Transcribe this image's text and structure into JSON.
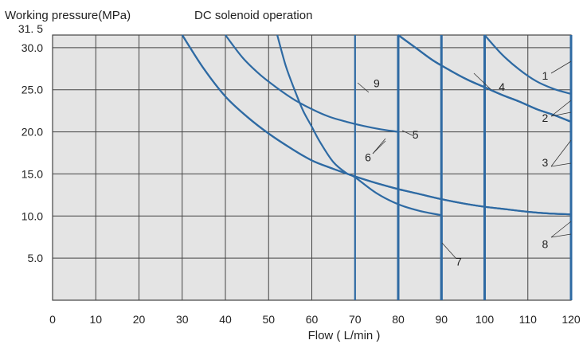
{
  "chart_data": {
    "type": "line",
    "title": "Working pressure(MPa)",
    "subtitle": "DC solenoid operation",
    "xlabel": "Flow ( L/min )",
    "ylabel": "Working pressure(MPa)",
    "xlim": [
      0,
      120
    ],
    "ylim": [
      0,
      31.5
    ],
    "x_ticks": [
      "0",
      "10",
      "20",
      "30",
      "40",
      "50",
      "60",
      "70",
      "80",
      "90",
      "100",
      "110",
      "120"
    ],
    "y_ticks": [
      {
        "value": 5,
        "label": "5.0"
      },
      {
        "value": 10,
        "label": "10.0"
      },
      {
        "value": 15,
        "label": "15.0"
      },
      {
        "value": 20,
        "label": "20.0"
      },
      {
        "value": 25,
        "label": "25.0"
      },
      {
        "value": 30,
        "label": "30.0"
      },
      {
        "value": 31.5,
        "label": "31. 5"
      }
    ],
    "grid": true,
    "accent_color": "#2e6aa3",
    "background_color": "#e4e4e4",
    "series": [
      {
        "label": "1",
        "x": [
          100,
          104,
          108,
          112,
          116,
          120
        ],
        "y": [
          31.5,
          29.2,
          27.4,
          26.0,
          25.1,
          24.5
        ]
      },
      {
        "label": "2",
        "x": [
          80,
          84,
          88,
          92,
          96,
          100,
          104,
          108,
          112,
          116,
          120
        ],
        "y": [
          31.5,
          30.0,
          28.5,
          27.3,
          26.2,
          25.3,
          24.4,
          23.6,
          22.7,
          22.0,
          21.2
        ]
      },
      {
        "label": "3",
        "x": [
          80,
          84,
          88,
          92,
          96,
          100,
          104,
          108,
          112,
          116,
          120
        ],
        "y": [
          31.5,
          30.0,
          28.5,
          27.3,
          26.2,
          25.3,
          24.4,
          23.6,
          22.7,
          22.0,
          21.2
        ]
      },
      {
        "label": "4",
        "x": [
          80,
          84,
          88,
          92,
          96,
          100,
          104,
          108,
          112,
          116,
          120
        ],
        "y": [
          31.5,
          30.0,
          28.5,
          27.3,
          26.2,
          25.3,
          24.4,
          23.6,
          22.7,
          22.0,
          21.2
        ]
      },
      {
        "label": "5",
        "x": [
          40,
          44,
          48,
          52,
          56,
          60,
          64,
          68,
          72,
          76,
          80
        ],
        "y": [
          31.5,
          28.8,
          26.8,
          25.2,
          23.8,
          22.7,
          21.8,
          21.2,
          20.7,
          20.3,
          20.0
        ]
      },
      {
        "label": "6",
        "x": [
          30,
          35,
          40,
          45,
          50,
          55,
          60,
          65,
          70,
          75,
          80,
          85,
          90,
          95,
          100,
          105,
          110,
          115,
          120
        ],
        "y": [
          31.5,
          27.5,
          24.2,
          21.8,
          19.8,
          18.1,
          16.6,
          15.6,
          14.7,
          13.9,
          13.2,
          12.6,
          12.0,
          11.5,
          11.1,
          10.8,
          10.5,
          10.3,
          10.2
        ]
      },
      {
        "label": "7",
        "x": [
          52,
          54,
          56,
          58,
          60,
          62,
          65,
          68,
          70,
          75,
          80,
          85,
          90
        ],
        "y": [
          31.5,
          27.8,
          25.0,
          22.5,
          20.6,
          18.7,
          16.4,
          15.1,
          14.6,
          12.7,
          11.4,
          10.6,
          10.1
        ]
      },
      {
        "label": "8",
        "x": [
          30,
          35,
          40,
          45,
          50,
          55,
          60,
          65,
          70,
          75,
          80,
          85,
          90,
          95,
          100,
          105,
          110,
          115,
          120
        ],
        "y": [
          31.5,
          27.5,
          24.2,
          21.8,
          19.8,
          18.1,
          16.6,
          15.6,
          14.7,
          13.9,
          13.2,
          12.6,
          12.0,
          11.5,
          11.1,
          10.8,
          10.5,
          10.3,
          10.2
        ]
      },
      {
        "label": "9",
        "x": [
          70,
          70
        ],
        "y": [
          0,
          31.5
        ]
      }
    ],
    "annotations": [
      {
        "text": "1",
        "x": 114,
        "y": 26.2
      },
      {
        "text": "2",
        "x": 114,
        "y": 21.2
      },
      {
        "text": "3",
        "x": 114,
        "y": 15.9
      },
      {
        "text": "4",
        "x": 104,
        "y": 24.9
      },
      {
        "text": "5",
        "x": 84,
        "y": 19.2
      },
      {
        "text": "6",
        "x": 73,
        "y": 16.5
      },
      {
        "text": "7",
        "x": 94,
        "y": 4.1
      },
      {
        "text": "8",
        "x": 114,
        "y": 6.2
      },
      {
        "text": "9",
        "x": 75,
        "y": 25.3
      }
    ]
  }
}
